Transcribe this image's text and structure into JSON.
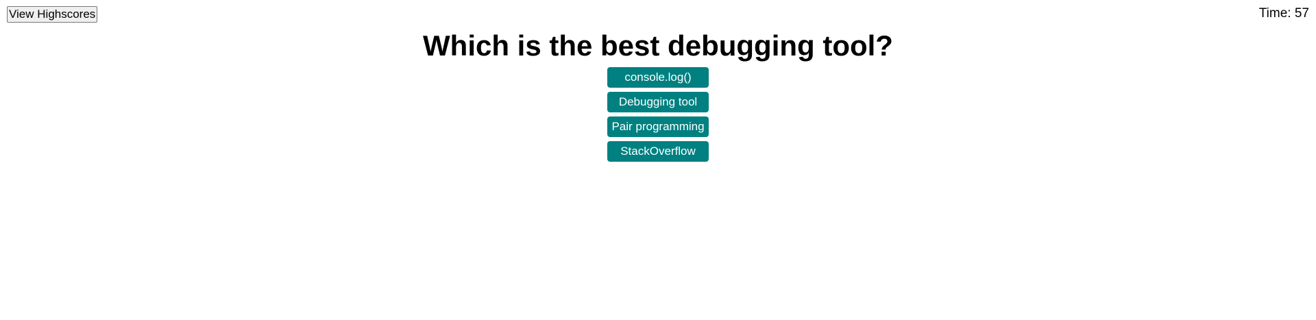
{
  "header": {
    "highscores_label": "View Highscores",
    "timer_text": "Time: 57"
  },
  "quiz": {
    "question": "Which is the best debugging tool?",
    "choices": [
      {
        "label": "console.log()"
      },
      {
        "label": "Debugging tool"
      },
      {
        "label": "Pair programming"
      },
      {
        "label": "StackOverflow"
      }
    ]
  },
  "colors": {
    "choice_button_bg": "#008080",
    "choice_button_text": "#ffffff"
  }
}
